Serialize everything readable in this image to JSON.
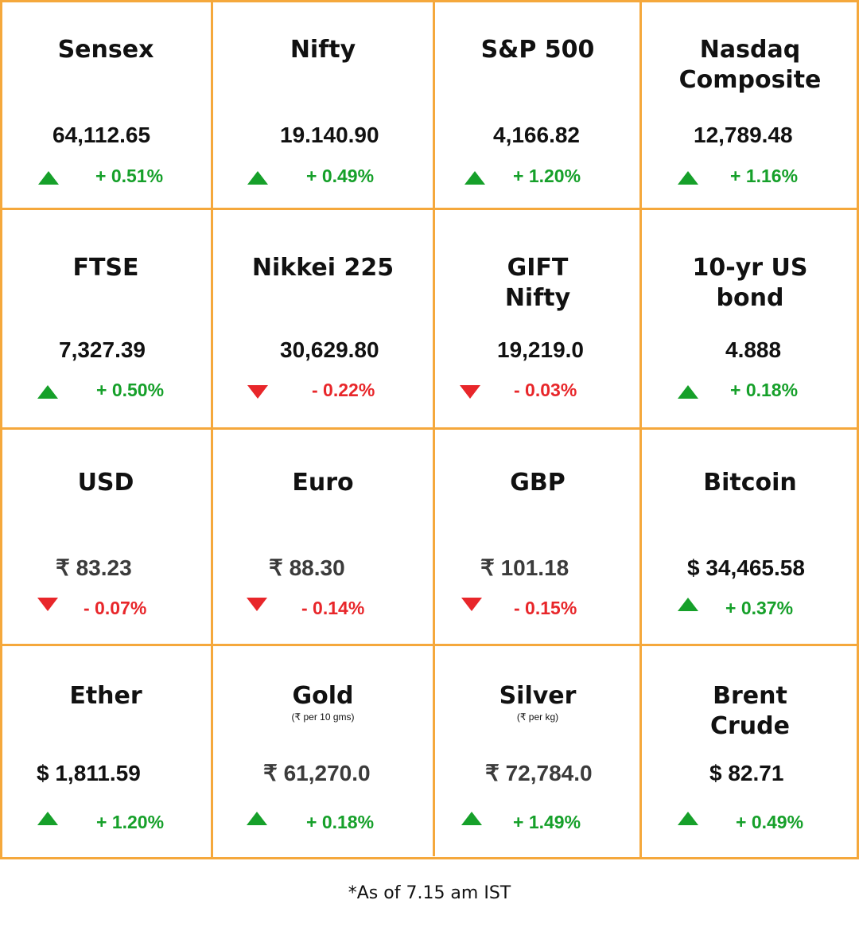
{
  "cells": [
    {
      "name": "Sensex",
      "value": "64,112.65",
      "change": "+ 0.51%",
      "direction": "up"
    },
    {
      "name": "Nifty",
      "value": "19.140.90",
      "change": "+ 0.49%",
      "direction": "up"
    },
    {
      "name": "S&P 500",
      "value": "4,166.82",
      "change": "+ 1.20%",
      "direction": "up"
    },
    {
      "name": "Nasdaq Composite",
      "value": "12,789.48",
      "change": "+ 1.16%",
      "direction": "up"
    },
    {
      "name": "FTSE",
      "value": "7,327.39",
      "change": "+ 0.50%",
      "direction": "up"
    },
    {
      "name": "Nikkei 225",
      "value": "30,629.80",
      "change": "- 0.22%",
      "direction": "down"
    },
    {
      "name": "GIFT Nifty",
      "value": "19,219.0",
      "change": "- 0.03%",
      "direction": "down"
    },
    {
      "name": "10-yr US bond",
      "value": "4.888",
      "change": "+ 0.18%",
      "direction": "up"
    },
    {
      "name": "USD",
      "value": "₹ 83.23",
      "change": "- 0.07%",
      "direction": "down"
    },
    {
      "name": "Euro",
      "value": "₹ 88.30",
      "change": "- 0.14%",
      "direction": "down"
    },
    {
      "name": "GBP",
      "value": "₹ 101.18",
      "change": "- 0.15%",
      "direction": "down"
    },
    {
      "name": "Bitcoin",
      "value": "$ 34,465.58",
      "change": "+ 0.37%",
      "direction": "up"
    },
    {
      "name": "Ether",
      "value": "$ 1,811.59",
      "change": "+ 1.20%",
      "direction": "up"
    },
    {
      "name": "Gold",
      "sub": "(₹ per 10 gms)",
      "value": "₹ 61,270.0",
      "change": "+ 0.18%",
      "direction": "up"
    },
    {
      "name": "Silver",
      "sub": "(₹ per kg)",
      "value": "₹ 72,784.0",
      "change": "+ 1.49%",
      "direction": "up"
    },
    {
      "name": "Brent Crude",
      "value": "$ 82.71",
      "change": "+ 0.49%",
      "direction": "up"
    }
  ],
  "footnote": "*As of 7.15 am IST",
  "colors": {
    "border": "#f5a83c",
    "up": "#16a02a",
    "down": "#e8262a"
  }
}
